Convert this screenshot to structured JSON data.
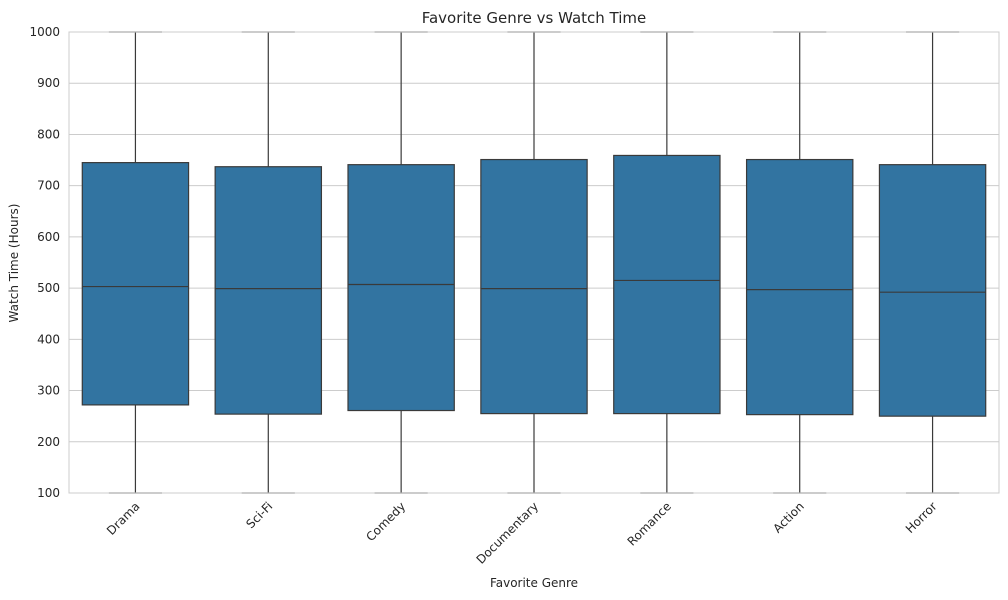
{
  "chart_data": {
    "type": "box",
    "title": "Favorite Genre vs Watch Time",
    "xlabel": "Favorite Genre",
    "ylabel": "Watch Time (Hours)",
    "ylim": [
      100,
      1000
    ],
    "yticks": [
      100,
      200,
      300,
      400,
      500,
      600,
      700,
      800,
      900,
      1000
    ],
    "grid": "horizontal",
    "box_color": "#3274a1",
    "line_color": "#3a3a3a",
    "categories": [
      "Drama",
      "Sci-Fi",
      "Comedy",
      "Documentary",
      "Romance",
      "Action",
      "Horror"
    ],
    "boxes": [
      {
        "category": "Drama",
        "whisker_low": 100,
        "q1": 272,
        "median": 503,
        "q3": 745,
        "whisker_high": 1000
      },
      {
        "category": "Sci-Fi",
        "whisker_low": 100,
        "q1": 254,
        "median": 499,
        "q3": 737,
        "whisker_high": 1000
      },
      {
        "category": "Comedy",
        "whisker_low": 100,
        "q1": 261,
        "median": 507,
        "q3": 741,
        "whisker_high": 1000
      },
      {
        "category": "Documentary",
        "whisker_low": 100,
        "q1": 255,
        "median": 499,
        "q3": 751,
        "whisker_high": 1000
      },
      {
        "category": "Romance",
        "whisker_low": 100,
        "q1": 255,
        "median": 515,
        "q3": 759,
        "whisker_high": 1000
      },
      {
        "category": "Action",
        "whisker_low": 100,
        "q1": 253,
        "median": 497,
        "q3": 751,
        "whisker_high": 1000
      },
      {
        "category": "Horror",
        "whisker_low": 100,
        "q1": 250,
        "median": 492,
        "q3": 741,
        "whisker_high": 1000
      }
    ]
  }
}
